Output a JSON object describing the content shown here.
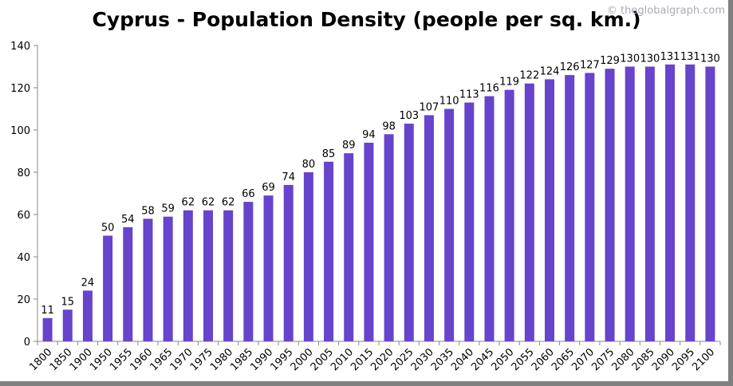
{
  "chart_data": {
    "type": "bar",
    "title": "Cyprus - Population Density (people per sq. km.)",
    "watermark": "© theglobalgraph.com",
    "xlabel": "",
    "ylabel": "",
    "ylim": [
      0,
      140
    ],
    "yticks": [
      0,
      20,
      40,
      60,
      80,
      100,
      120,
      140
    ],
    "grid": false,
    "bar_color": "#6644cc",
    "categories": [
      "1800",
      "1850",
      "1900",
      "1950",
      "1955",
      "1960",
      "1965",
      "1970",
      "1975",
      "1980",
      "1985",
      "1990",
      "1995",
      "2000",
      "2005",
      "2010",
      "2015",
      "2020",
      "2025",
      "2030",
      "2035",
      "2040",
      "2045",
      "2050",
      "2055",
      "2060",
      "2065",
      "2070",
      "2075",
      "2080",
      "2085",
      "2090",
      "2095",
      "2100"
    ],
    "values": [
      11,
      15,
      24,
      50,
      54,
      58,
      59,
      62,
      62,
      62,
      66,
      69,
      74,
      80,
      85,
      89,
      94,
      98,
      103,
      107,
      110,
      113,
      116,
      119,
      122,
      124,
      126,
      127,
      129,
      130,
      130,
      131,
      131,
      130
    ]
  }
}
